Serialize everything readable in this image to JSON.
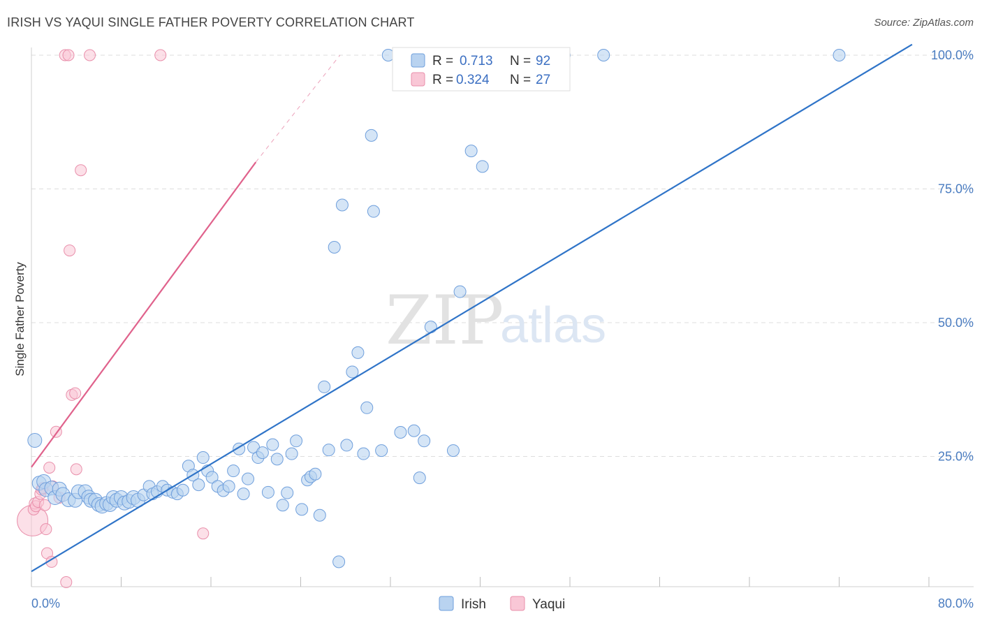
{
  "header": {
    "title": "IRISH VS YAQUI SINGLE FATHER POVERTY CORRELATION CHART",
    "source": "Source: ZipAtlas.com"
  },
  "watermark": {
    "zip": "ZIP",
    "atlas": "atlas"
  },
  "legend": {
    "irish": {
      "r_label": "R = ",
      "r_value": "0.713",
      "n_label": "N = ",
      "n_value": "92"
    },
    "yaqui": {
      "r_label": "R = ",
      "r_value": "0.324",
      "n_label": "N = ",
      "n_value": "27"
    }
  },
  "colors": {
    "irish_fill": "#b9d3f0",
    "irish_stroke": "#6f9fdc",
    "irish_line": "#2f74c8",
    "yaqui_fill": "#f9c7d6",
    "yaqui_stroke": "#e98fab",
    "yaqui_line": "#e0628c",
    "grid": "#dddddd"
  },
  "chart_data": {
    "type": "scatter",
    "title": "IRISH VS YAQUI SINGLE FATHER POVERTY CORRELATION CHART",
    "xlabel": "",
    "ylabel": "Single Father Poverty",
    "xlim": [
      0,
      80
    ],
    "ylim": [
      0,
      102
    ],
    "x_tick_labels": [
      {
        "value": 0,
        "label": "0.0%"
      },
      {
        "value": 80,
        "label": "80.0%"
      }
    ],
    "y_tick_labels": [
      {
        "value": 25,
        "label": "25.0%"
      },
      {
        "value": 50,
        "label": "50.0%"
      },
      {
        "value": 75,
        "label": "75.0%"
      },
      {
        "value": 100,
        "label": "100.0%"
      }
    ],
    "grid": true,
    "legend_position": "top-center",
    "series": [
      {
        "name": "Irish",
        "r": 0.713,
        "n": 92,
        "trend": {
          "x": [
            0,
            78.5
          ],
          "y": [
            3.5,
            102
          ]
        },
        "points": [
          [
            0.3,
            28.0
          ],
          [
            0.7,
            20.0
          ],
          [
            1.1,
            20.3
          ],
          [
            1.3,
            18.8
          ],
          [
            1.8,
            19.1
          ],
          [
            2.1,
            17.3
          ],
          [
            2.5,
            18.9
          ],
          [
            2.8,
            17.9
          ],
          [
            3.3,
            16.9
          ],
          [
            3.9,
            16.8
          ],
          [
            4.2,
            18.4
          ],
          [
            4.8,
            18.4
          ],
          [
            5.1,
            17.4
          ],
          [
            5.3,
            16.8
          ],
          [
            5.7,
            16.8
          ],
          [
            6.0,
            16.0
          ],
          [
            6.3,
            15.7
          ],
          [
            6.7,
            16.2
          ],
          [
            7.0,
            16.0
          ],
          [
            7.3,
            17.3
          ],
          [
            7.6,
            16.8
          ],
          [
            8.0,
            17.3
          ],
          [
            8.3,
            16.3
          ],
          [
            8.7,
            16.6
          ],
          [
            9.1,
            17.3
          ],
          [
            9.5,
            16.8
          ],
          [
            10.0,
            17.8
          ],
          [
            10.5,
            19.4
          ],
          [
            10.8,
            18.0
          ],
          [
            11.2,
            18.4
          ],
          [
            11.7,
            19.4
          ],
          [
            12.1,
            18.7
          ],
          [
            12.6,
            18.3
          ],
          [
            13.0,
            18.0
          ],
          [
            13.5,
            18.7
          ],
          [
            14.0,
            23.2
          ],
          [
            14.4,
            21.5
          ],
          [
            14.9,
            19.7
          ],
          [
            15.3,
            24.8
          ],
          [
            15.7,
            22.3
          ],
          [
            16.1,
            21.1
          ],
          [
            16.6,
            19.4
          ],
          [
            17.1,
            18.6
          ],
          [
            17.6,
            19.4
          ],
          [
            18.0,
            22.3
          ],
          [
            18.5,
            26.4
          ],
          [
            18.9,
            18.0
          ],
          [
            19.3,
            20.8
          ],
          [
            19.8,
            26.7
          ],
          [
            20.2,
            24.8
          ],
          [
            20.6,
            25.7
          ],
          [
            21.1,
            18.3
          ],
          [
            21.5,
            27.2
          ],
          [
            21.9,
            24.5
          ],
          [
            22.4,
            15.9
          ],
          [
            22.8,
            18.2
          ],
          [
            23.2,
            25.5
          ],
          [
            23.6,
            27.9
          ],
          [
            24.1,
            15.1
          ],
          [
            24.6,
            20.6
          ],
          [
            24.9,
            21.2
          ],
          [
            25.3,
            21.7
          ],
          [
            25.7,
            14.0
          ],
          [
            26.1,
            38.0
          ],
          [
            26.5,
            26.2
          ],
          [
            27.0,
            64.1
          ],
          [
            27.4,
            5.3
          ],
          [
            27.7,
            72.0
          ],
          [
            28.1,
            27.1
          ],
          [
            28.6,
            40.8
          ],
          [
            29.1,
            44.4
          ],
          [
            29.6,
            25.5
          ],
          [
            29.9,
            34.1
          ],
          [
            30.3,
            85.0
          ],
          [
            30.5,
            70.8
          ],
          [
            31.2,
            26.1
          ],
          [
            32.9,
            29.5
          ],
          [
            34.1,
            29.8
          ],
          [
            34.6,
            21.0
          ],
          [
            35.0,
            27.9
          ],
          [
            35.6,
            49.2
          ],
          [
            37.6,
            26.1
          ],
          [
            38.2,
            55.8
          ],
          [
            39.2,
            82.1
          ],
          [
            40.2,
            79.2
          ],
          [
            47.5,
            100.0
          ],
          [
            51.0,
            100.0
          ],
          [
            72.0,
            100.0
          ],
          [
            38.0,
            100.0
          ],
          [
            36.5,
            100.0
          ],
          [
            33.0,
            100.0
          ],
          [
            31.8,
            100.0
          ]
        ]
      },
      {
        "name": "Yaqui",
        "r": 0.324,
        "n": 27,
        "trend": {
          "x": [
            0,
            20
          ],
          "y": [
            23,
            80
          ]
        },
        "trend_extension": {
          "x": [
            20,
            27.5
          ],
          "y": [
            80,
            100
          ]
        },
        "points": [
          [
            0.1,
            13.0
          ],
          [
            0.2,
            15.1
          ],
          [
            0.3,
            16.2
          ],
          [
            0.4,
            15.7
          ],
          [
            0.6,
            16.5
          ],
          [
            0.8,
            18.0
          ],
          [
            0.9,
            18.8
          ],
          [
            1.0,
            19.1
          ],
          [
            1.2,
            15.9
          ],
          [
            1.3,
            11.4
          ],
          [
            1.4,
            6.9
          ],
          [
            1.6,
            22.9
          ],
          [
            1.8,
            5.3
          ],
          [
            1.9,
            19.4
          ],
          [
            2.2,
            29.6
          ],
          [
            2.5,
            17.3
          ],
          [
            3.1,
            1.5
          ],
          [
            3.4,
            63.5
          ],
          [
            3.6,
            36.5
          ],
          [
            3.9,
            36.8
          ],
          [
            4.0,
            22.6
          ],
          [
            4.4,
            78.5
          ],
          [
            3.0,
            100.0
          ],
          [
            3.3,
            100.0
          ],
          [
            11.5,
            100.0
          ],
          [
            15.3,
            10.6
          ],
          [
            5.2,
            100.0
          ]
        ]
      }
    ]
  }
}
